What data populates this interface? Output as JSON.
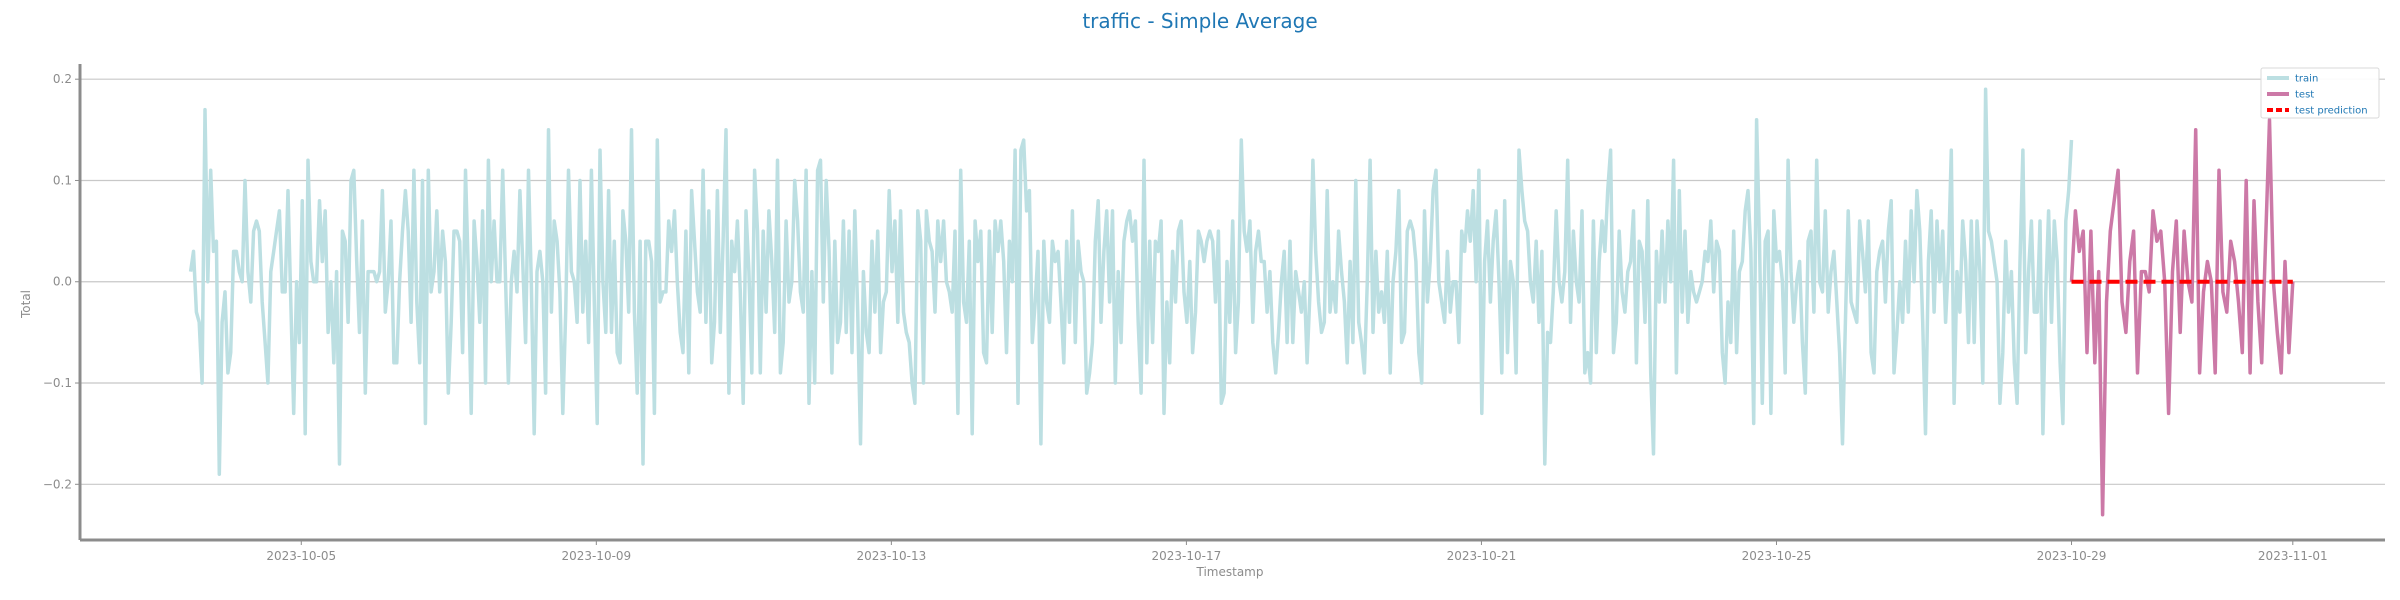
{
  "chart_data": {
    "type": "line",
    "title": "traffic - Simple Average",
    "xlabel": "Timestamp",
    "ylabel": "Total",
    "x_start": "2023-10-03T12:00",
    "x_end": "2023-11-01T12:00",
    "xlim": [
      "2023-10-02T00:00",
      "2023-11-02T06:00"
    ],
    "ylim": [
      -0.255,
      0.215
    ],
    "x_ticks": [
      "2023-10-05",
      "2023-10-09",
      "2023-10-13",
      "2023-10-17",
      "2023-10-21",
      "2023-10-25",
      "2023-10-29",
      "2023-11-01"
    ],
    "y_ticks": [
      -0.2,
      -0.1,
      0.0,
      0.1,
      0.2
    ],
    "y_tick_labels": [
      "−0.2",
      "−0.1",
      "0.0",
      "0.1",
      "0.2"
    ],
    "grid": "horizontal",
    "legend_position": "top-right",
    "series": [
      {
        "name": "train",
        "color": "#bcdfe2",
        "x_start": "2023-10-03T12:00",
        "x_end": "2023-10-29T00:00",
        "values": [
          0.01,
          0.03,
          -0.03,
          -0.04,
          -0.1,
          0.17,
          0.0,
          0.11,
          0.03,
          0.04,
          -0.19,
          -0.04,
          -0.01,
          -0.09,
          -0.07,
          0.03,
          0.03,
          0.01,
          0.0,
          0.1,
          0.01,
          -0.02,
          0.05,
          0.06,
          0.05,
          -0.02,
          -0.06,
          -0.1,
          0.01,
          0.03,
          0.05,
          0.07,
          -0.01,
          -0.01,
          0.09,
          -0.02,
          -0.13,
          0.0,
          -0.06,
          0.08,
          -0.15,
          0.12,
          0.02,
          0.0,
          0.0,
          0.08,
          0.02,
          0.07,
          -0.05,
          0.0,
          -0.08,
          0.01,
          -0.18,
          0.05,
          0.04,
          -0.04,
          0.1,
          0.11,
          0.02,
          -0.05,
          0.06,
          -0.11,
          0.01,
          0.01,
          0.01,
          0.0,
          0.01,
          0.09,
          -0.03,
          0.0,
          0.06,
          -0.08,
          -0.08,
          0.0,
          0.05,
          0.09,
          0.05,
          -0.04,
          0.11,
          -0.02,
          -0.08,
          0.1,
          -0.14,
          0.11,
          -0.01,
          0.01,
          0.07,
          -0.01,
          0.05,
          0.02,
          -0.11,
          -0.04,
          0.05,
          0.05,
          0.04,
          -0.07,
          0.11,
          0.01,
          -0.13,
          0.06,
          0.02,
          -0.04,
          0.07,
          -0.1,
          0.12,
          0.0,
          0.06,
          0.0,
          0.0,
          0.11,
          0.0,
          -0.1,
          0.0,
          0.03,
          -0.01,
          0.09,
          0.02,
          -0.06,
          0.11,
          0.0,
          -0.15,
          0.01,
          0.03,
          0.0,
          -0.11,
          0.15,
          -0.03,
          0.06,
          0.04,
          -0.01,
          -0.13,
          -0.03,
          0.11,
          0.01,
          0.0,
          -0.04,
          0.1,
          -0.03,
          0.04,
          -0.06,
          0.11,
          -0.02,
          -0.14,
          0.13,
          0.0,
          -0.05,
          0.09,
          -0.05,
          0.04,
          -0.07,
          -0.08,
          0.07,
          0.04,
          -0.03,
          0.15,
          -0.03,
          -0.11,
          0.04,
          -0.18,
          0.04,
          0.04,
          0.02,
          -0.13,
          0.14,
          -0.02,
          -0.01,
          -0.01,
          0.06,
          0.03,
          0.07,
          0.0,
          -0.05,
          -0.07,
          0.05,
          -0.09,
          0.09,
          0.04,
          -0.01,
          -0.03,
          0.11,
          -0.04,
          0.07,
          -0.08,
          -0.04,
          0.09,
          -0.05,
          0.04,
          0.15,
          -0.11,
          0.04,
          0.01,
          0.06,
          -0.01,
          -0.12,
          0.07,
          0.01,
          -0.09,
          0.11,
          0.05,
          -0.09,
          0.05,
          -0.03,
          0.07,
          0.02,
          -0.05,
          0.12,
          -0.09,
          -0.06,
          0.06,
          -0.02,
          0.0,
          0.1,
          0.06,
          -0.01,
          -0.03,
          0.11,
          -0.12,
          0.01,
          -0.1,
          0.11,
          0.12,
          -0.02,
          0.1,
          0.03,
          -0.09,
          0.04,
          -0.06,
          -0.04,
          0.06,
          -0.05,
          0.05,
          -0.07,
          0.07,
          -0.03,
          -0.16,
          0.01,
          -0.05,
          -0.07,
          0.04,
          -0.03,
          0.05,
          -0.07,
          -0.02,
          -0.01,
          0.09,
          0.01,
          0.06,
          -0.04,
          0.07,
          -0.03,
          -0.05,
          -0.06,
          -0.1,
          -0.12,
          0.07,
          0.04,
          -0.1,
          0.07,
          0.04,
          0.03,
          -0.03,
          0.06,
          0.02,
          0.06,
          0.0,
          -0.01,
          -0.03,
          0.05,
          -0.13,
          0.11,
          -0.02,
          -0.04,
          0.04,
          -0.15,
          0.06,
          0.02,
          0.05,
          -0.07,
          -0.08,
          0.05,
          -0.05,
          0.06,
          0.03,
          0.06,
          0.02,
          -0.07,
          0.04,
          0.0,
          0.13,
          -0.12,
          0.13,
          0.14,
          0.07,
          0.09,
          -0.06,
          -0.02,
          0.03,
          -0.16,
          0.04,
          -0.02,
          -0.04,
          0.04,
          0.02,
          0.03,
          -0.02,
          -0.08,
          0.04,
          -0.04,
          0.07,
          -0.06,
          0.04,
          0.01,
          0.0,
          -0.11,
          -0.09,
          -0.06,
          0.04,
          0.08,
          -0.04,
          0.03,
          0.07,
          -0.02,
          0.07,
          -0.1,
          0.01,
          -0.06,
          0.04,
          0.06,
          0.07,
          0.04,
          0.06,
          -0.04,
          -0.11,
          0.12,
          -0.08,
          0.04,
          -0.06,
          0.04,
          0.03,
          0.06,
          -0.13,
          -0.02,
          -0.08,
          0.03,
          -0.02,
          0.05,
          0.06,
          -0.01,
          -0.04,
          0.02,
          -0.07,
          -0.03,
          0.05,
          0.04,
          0.02,
          0.04,
          0.05,
          0.04,
          -0.02,
          0.05,
          -0.12,
          -0.11,
          0.02,
          -0.04,
          0.06,
          -0.07,
          -0.02,
          0.14,
          0.05,
          0.03,
          0.06,
          -0.04,
          0.03,
          0.05,
          0.02,
          0.02,
          -0.03,
          0.01,
          -0.06,
          -0.09,
          -0.05,
          0.0,
          0.03,
          -0.06,
          0.04,
          -0.06,
          0.01,
          -0.01,
          -0.03,
          0.0,
          -0.08,
          -0.01,
          0.12,
          0.03,
          -0.02,
          -0.05,
          -0.04,
          0.09,
          -0.03,
          0.0,
          -0.03,
          0.05,
          0.01,
          -0.02,
          -0.08,
          0.02,
          -0.06,
          0.1,
          -0.04,
          -0.06,
          -0.09,
          0.0,
          0.12,
          -0.05,
          0.03,
          -0.03,
          -0.01,
          -0.04,
          0.03,
          -0.09,
          0.0,
          0.03,
          0.09,
          -0.06,
          -0.05,
          0.05,
          0.06,
          0.05,
          0.02,
          -0.07,
          -0.1,
          0.07,
          -0.02,
          0.02,
          0.09,
          0.11,
          0.0,
          -0.02,
          -0.04,
          0.03,
          -0.03,
          0.0,
          0.0,
          -0.06,
          0.05,
          0.03,
          0.07,
          0.04,
          0.09,
          0.0,
          0.11,
          -0.13,
          0.02,
          0.06,
          -0.02,
          0.04,
          0.07,
          0.0,
          -0.09,
          0.08,
          -0.07,
          0.02,
          0.0,
          -0.09,
          0.13,
          0.09,
          0.06,
          0.05,
          0.0,
          -0.02,
          0.04,
          -0.04,
          0.03,
          -0.18,
          -0.05,
          -0.06,
          -0.01,
          0.07,
          0.0,
          -0.02,
          0.01,
          0.12,
          -0.04,
          0.05,
          0.0,
          -0.02,
          0.07,
          -0.09,
          -0.07,
          -0.1,
          0.06,
          -0.07,
          0.02,
          0.06,
          0.03,
          0.09,
          0.13,
          -0.07,
          -0.04,
          0.05,
          -0.01,
          -0.03,
          0.01,
          0.02,
          0.07,
          -0.08,
          0.04,
          0.03,
          -0.04,
          0.08,
          -0.09,
          -0.17,
          0.03,
          -0.02,
          0.05,
          -0.02,
          0.06,
          0.0,
          0.12,
          -0.09,
          0.09,
          -0.03,
          0.05,
          -0.04,
          0.01,
          -0.01,
          -0.02,
          -0.01,
          0.0,
          0.03,
          0.02,
          0.06,
          -0.01,
          0.04,
          0.03,
          -0.07,
          -0.1,
          -0.02,
          -0.06,
          0.05,
          -0.07,
          0.01,
          0.02,
          0.07,
          0.09,
          0.03,
          -0.14,
          0.16,
          0.04,
          -0.12,
          0.04,
          0.05,
          -0.13,
          0.07,
          0.02,
          0.03,
          0.0,
          -0.09,
          0.12,
          0.01,
          -0.04,
          0.0,
          0.02,
          -0.06,
          -0.11,
          0.04,
          0.05,
          -0.03,
          0.12,
          0.0,
          -0.01,
          0.07,
          -0.03,
          0.01,
          0.03,
          -0.02,
          -0.07,
          -0.16,
          -0.04,
          0.07,
          -0.02,
          -0.03,
          -0.04,
          0.06,
          0.03,
          -0.01,
          0.06,
          -0.07,
          -0.09,
          0.01,
          0.03,
          0.04,
          -0.02,
          0.05,
          0.08,
          -0.09,
          -0.05,
          0.0,
          -0.04,
          0.04,
          -0.03,
          0.07,
          0.0,
          0.09,
          0.05,
          -0.04,
          -0.15,
          0.02,
          0.07,
          -0.03,
          0.06,
          0.0,
          0.05,
          -0.04,
          0.02,
          0.13,
          -0.12,
          0.01,
          -0.03,
          0.06,
          0.02,
          -0.06,
          0.06,
          -0.06,
          0.06,
          0.01,
          -0.1,
          0.19,
          0.05,
          0.04,
          0.02,
          0.0,
          -0.12,
          -0.07,
          0.04,
          -0.03,
          0.01,
          -0.08,
          -0.12,
          0.02,
          0.13,
          -0.07,
          0.01,
          0.06,
          -0.03,
          -0.03,
          0.06,
          -0.15,
          -0.01,
          0.07,
          -0.04,
          0.06,
          0.02,
          -0.08,
          -0.14,
          0.06,
          0.09,
          0.14
        ]
      },
      {
        "name": "test",
        "color": "#cc79a7",
        "x_start": "2023-10-29T00:00",
        "x_end": "2023-11-01T00:00",
        "values": [
          0.0,
          0.07,
          0.03,
          0.05,
          -0.07,
          0.05,
          -0.08,
          0.01,
          -0.23,
          -0.02,
          0.05,
          0.08,
          0.11,
          -0.02,
          -0.05,
          0.02,
          0.05,
          -0.09,
          0.01,
          0.01,
          -0.01,
          0.07,
          0.04,
          0.05,
          0.0,
          -0.13,
          0.01,
          0.06,
          -0.05,
          0.05,
          0.0,
          -0.02,
          0.15,
          -0.09,
          -0.01,
          0.02,
          0.0,
          -0.09,
          0.11,
          -0.01,
          -0.03,
          0.04,
          0.02,
          -0.02,
          -0.07,
          0.1,
          -0.09,
          0.08,
          -0.02,
          -0.08,
          0.04,
          0.16,
          0.0,
          -0.05,
          -0.09,
          0.02,
          -0.07,
          0.0
        ]
      },
      {
        "name": "test prediction",
        "color": "#ff0000",
        "dashed": true,
        "x_start": "2023-10-29T00:00",
        "x_end": "2023-11-01T00:00",
        "values": [
          0.0,
          0.0
        ]
      }
    ]
  }
}
